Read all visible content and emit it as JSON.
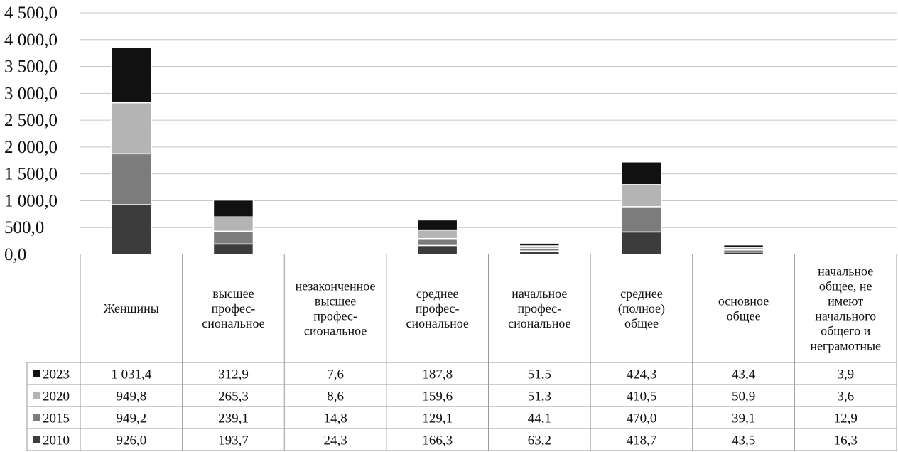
{
  "chart_data": {
    "type": "bar",
    "stacked": true,
    "title": "",
    "xlabel": "",
    "ylabel": "",
    "ylim": [
      0,
      4500
    ],
    "y_tick_labels": [
      "0,0",
      "500,0",
      "1 000,0",
      "1 500,0",
      "2 000,0",
      "2 500,0",
      "3 000,0",
      "3 500,0",
      "4 000,0",
      "4 500,0"
    ],
    "y_ticks": [
      0,
      500,
      1000,
      1500,
      2000,
      2500,
      3000,
      3500,
      4000,
      4500
    ],
    "grid": true,
    "legend": "data-table-left",
    "categories": [
      "Женщины",
      "высшее профес- сиональное",
      "незаконченное высшее профес- сиональное",
      "среднее профес- сиональное",
      "начальное профес- сиональное",
      "среднее (полное) общее",
      "основное общее",
      "начальное общее, не имеют начального общего и неграмотные"
    ],
    "category_lines": [
      [
        "Женщины"
      ],
      [
        "высшее",
        "профес-",
        "сиональное"
      ],
      [
        "незаконченное",
        "высшее",
        "профес-",
        "сиональное"
      ],
      [
        "среднее",
        "профес-",
        "сиональное"
      ],
      [
        "начальное",
        "профес-",
        "сиональное"
      ],
      [
        "среднее",
        "(полное)",
        "общее"
      ],
      [
        "основное",
        "общее"
      ],
      [
        "начальное",
        "общее, не",
        "имеют",
        "начального",
        "общего и",
        "неграмотные"
      ]
    ],
    "series": [
      {
        "name": "2010",
        "color": "#3c3c3c",
        "values": [
          926.0,
          193.7,
          24.3,
          166.3,
          63.2,
          418.7,
          43.5,
          16.3
        ],
        "labels": [
          "926,0",
          "193,7",
          "24,3",
          "166,3",
          "63,2",
          "418,7",
          "43,5",
          "16,3"
        ]
      },
      {
        "name": "2015",
        "color": "#7c7c7c",
        "values": [
          949.2,
          239.1,
          14.8,
          129.1,
          44.1,
          470.0,
          39.1,
          12.9
        ],
        "labels": [
          "949,2",
          "239,1",
          "14,8",
          "129,1",
          "44,1",
          "470,0",
          "39,1",
          "12,9"
        ]
      },
      {
        "name": "2020",
        "color": "#b4b4b4",
        "values": [
          949.8,
          265.3,
          8.6,
          159.6,
          51.3,
          410.5,
          50.9,
          3.6
        ],
        "labels": [
          "949,8",
          "265,3",
          "8,6",
          "159,6",
          "51,3",
          "410,5",
          "50,9",
          "3,6"
        ]
      },
      {
        "name": "2023",
        "color": "#111111",
        "values": [
          1031.4,
          312.9,
          7.6,
          187.8,
          51.5,
          424.3,
          43.4,
          3.9
        ],
        "labels": [
          "1 031,4",
          "312,9",
          "7,6",
          "187,8",
          "51,5",
          "424,3",
          "43,4",
          "3,9"
        ]
      }
    ],
    "table_row_order": [
      "2023",
      "2020",
      "2015",
      "2010"
    ]
  }
}
